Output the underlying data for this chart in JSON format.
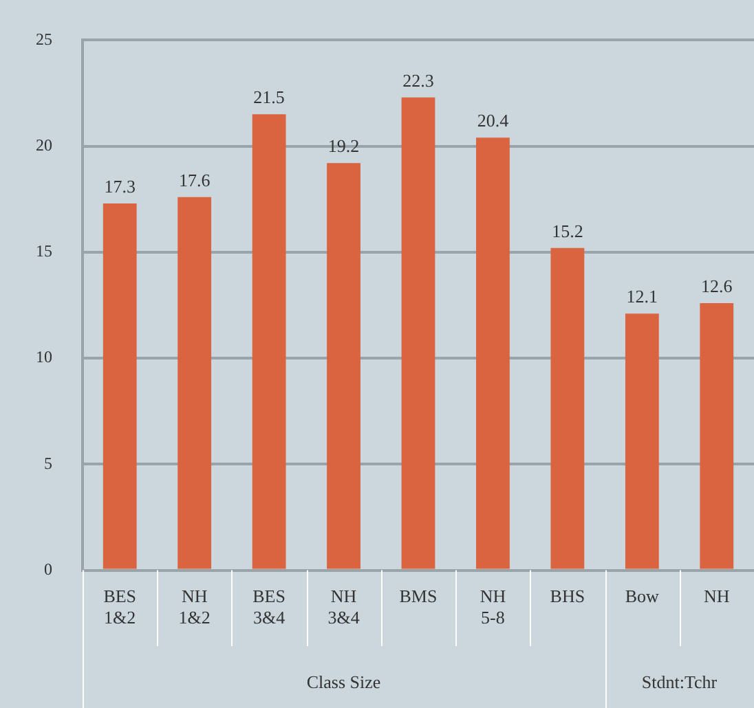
{
  "chart_data": {
    "type": "bar",
    "categories": [
      "BES\n1&2",
      "NH\n1&2",
      "BES\n3&4",
      "NH\n3&4",
      "BMS",
      "NH\n5-8",
      "BHS",
      "Bow",
      "NH"
    ],
    "values": [
      17.3,
      17.6,
      21.5,
      19.2,
      22.3,
      20.4,
      15.2,
      12.1,
      12.6
    ],
    "color": "#d9643f",
    "ylim": [
      0,
      25
    ],
    "yticks": [
      0,
      5,
      10,
      15,
      20,
      25
    ],
    "grid": "y",
    "data_labels": true,
    "annotations": [
      "Class Size",
      "Stdnt:Tchr"
    ]
  }
}
